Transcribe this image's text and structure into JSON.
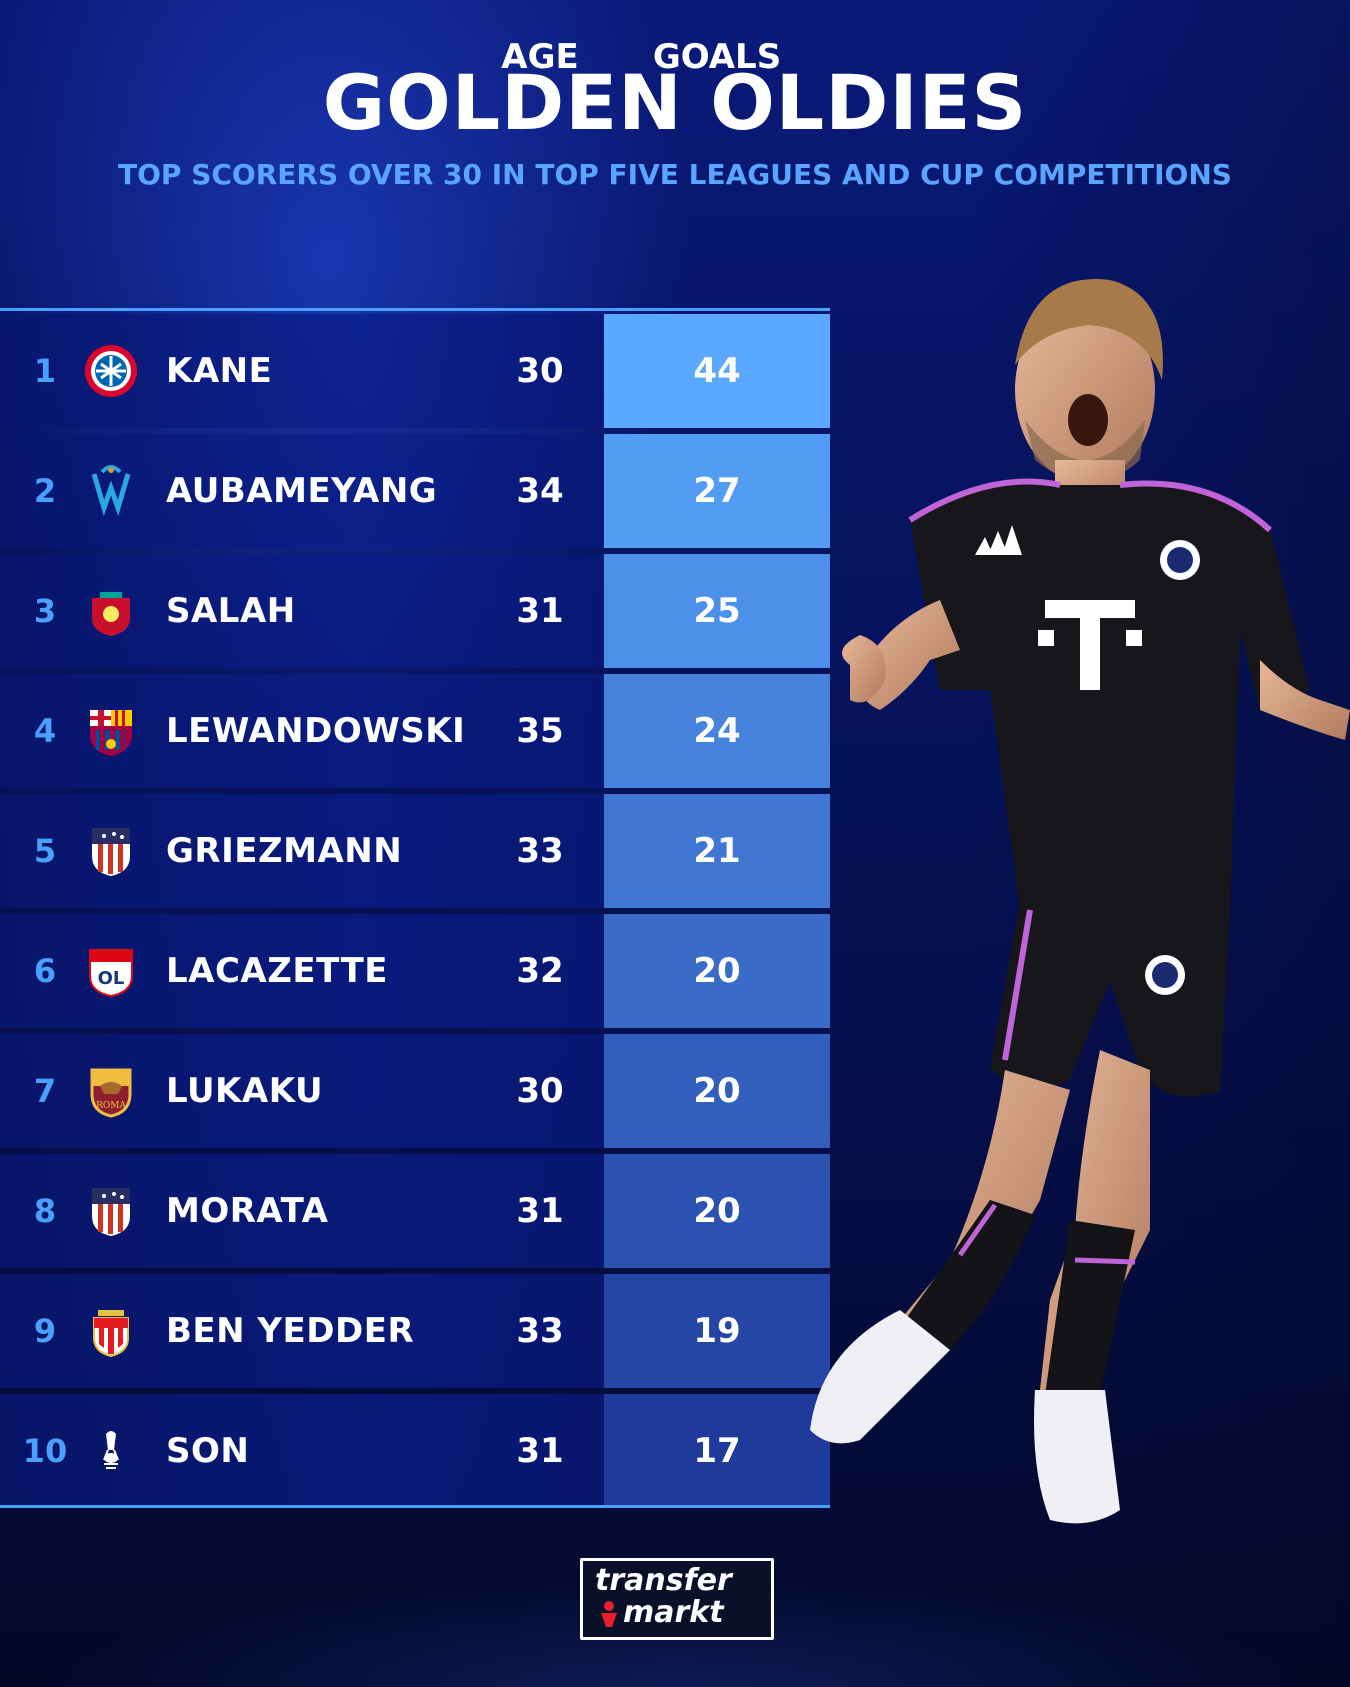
{
  "header": {
    "title": "GOLDEN OLDIES",
    "subtitle": "TOP SCORERS OVER 30 IN TOP FIVE LEAGUES AND CUP COMPETITIONS"
  },
  "columns": {
    "age": "AGE",
    "goals": "GOALS"
  },
  "rows": [
    {
      "rank": "1",
      "name": "KANE",
      "age": "30",
      "goals": "44",
      "crest": "bayern-munich-crest"
    },
    {
      "rank": "2",
      "name": "AUBAMEYANG",
      "age": "34",
      "goals": "27",
      "crest": "marseille-crest"
    },
    {
      "rank": "3",
      "name": "SALAH",
      "age": "31",
      "goals": "25",
      "crest": "liverpool-crest"
    },
    {
      "rank": "4",
      "name": "LEWANDOWSKI",
      "age": "35",
      "goals": "24",
      "crest": "barcelona-crest"
    },
    {
      "rank": "5",
      "name": "GRIEZMANN",
      "age": "33",
      "goals": "21",
      "crest": "atletico-madrid-crest"
    },
    {
      "rank": "6",
      "name": "LACAZETTE",
      "age": "32",
      "goals": "20",
      "crest": "lyon-crest"
    },
    {
      "rank": "7",
      "name": "LUKAKU",
      "age": "30",
      "goals": "20",
      "crest": "roma-crest"
    },
    {
      "rank": "8",
      "name": "MORATA",
      "age": "31",
      "goals": "20",
      "crest": "atletico-madrid-crest"
    },
    {
      "rank": "9",
      "name": "BEN YEDDER",
      "age": "33",
      "goals": "19",
      "crest": "monaco-crest"
    },
    {
      "rank": "10",
      "name": "SON",
      "age": "31",
      "goals": "17",
      "crest": "tottenham-crest"
    }
  ],
  "colors": {
    "accent": "#4aa0ff",
    "goals_top": "#5aa8ff",
    "goals_bottom": "#1e3a9a",
    "subtitle": "#5aa5ff"
  },
  "logo": {
    "line1": "transfer",
    "line2": "markt"
  },
  "chart_data": {
    "type": "table",
    "title": "GOLDEN OLDIES",
    "subtitle": "TOP SCORERS OVER 30 IN TOP FIVE LEAGUES AND CUP COMPETITIONS",
    "columns": [
      "",
      "",
      "AGE",
      "GOALS"
    ],
    "categories": [
      "KANE",
      "AUBAMEYANG",
      "SALAH",
      "LEWANDOWSKI",
      "GRIEZMANN",
      "LACAZETTE",
      "LUKAKU",
      "MORATA",
      "BEN YEDDER",
      "SON"
    ],
    "series": [
      {
        "name": "AGE",
        "values": [
          30,
          34,
          31,
          35,
          33,
          32,
          30,
          31,
          33,
          31
        ]
      },
      {
        "name": "GOALS",
        "values": [
          44,
          27,
          25,
          24,
          21,
          20,
          20,
          20,
          19,
          17
        ]
      }
    ]
  }
}
